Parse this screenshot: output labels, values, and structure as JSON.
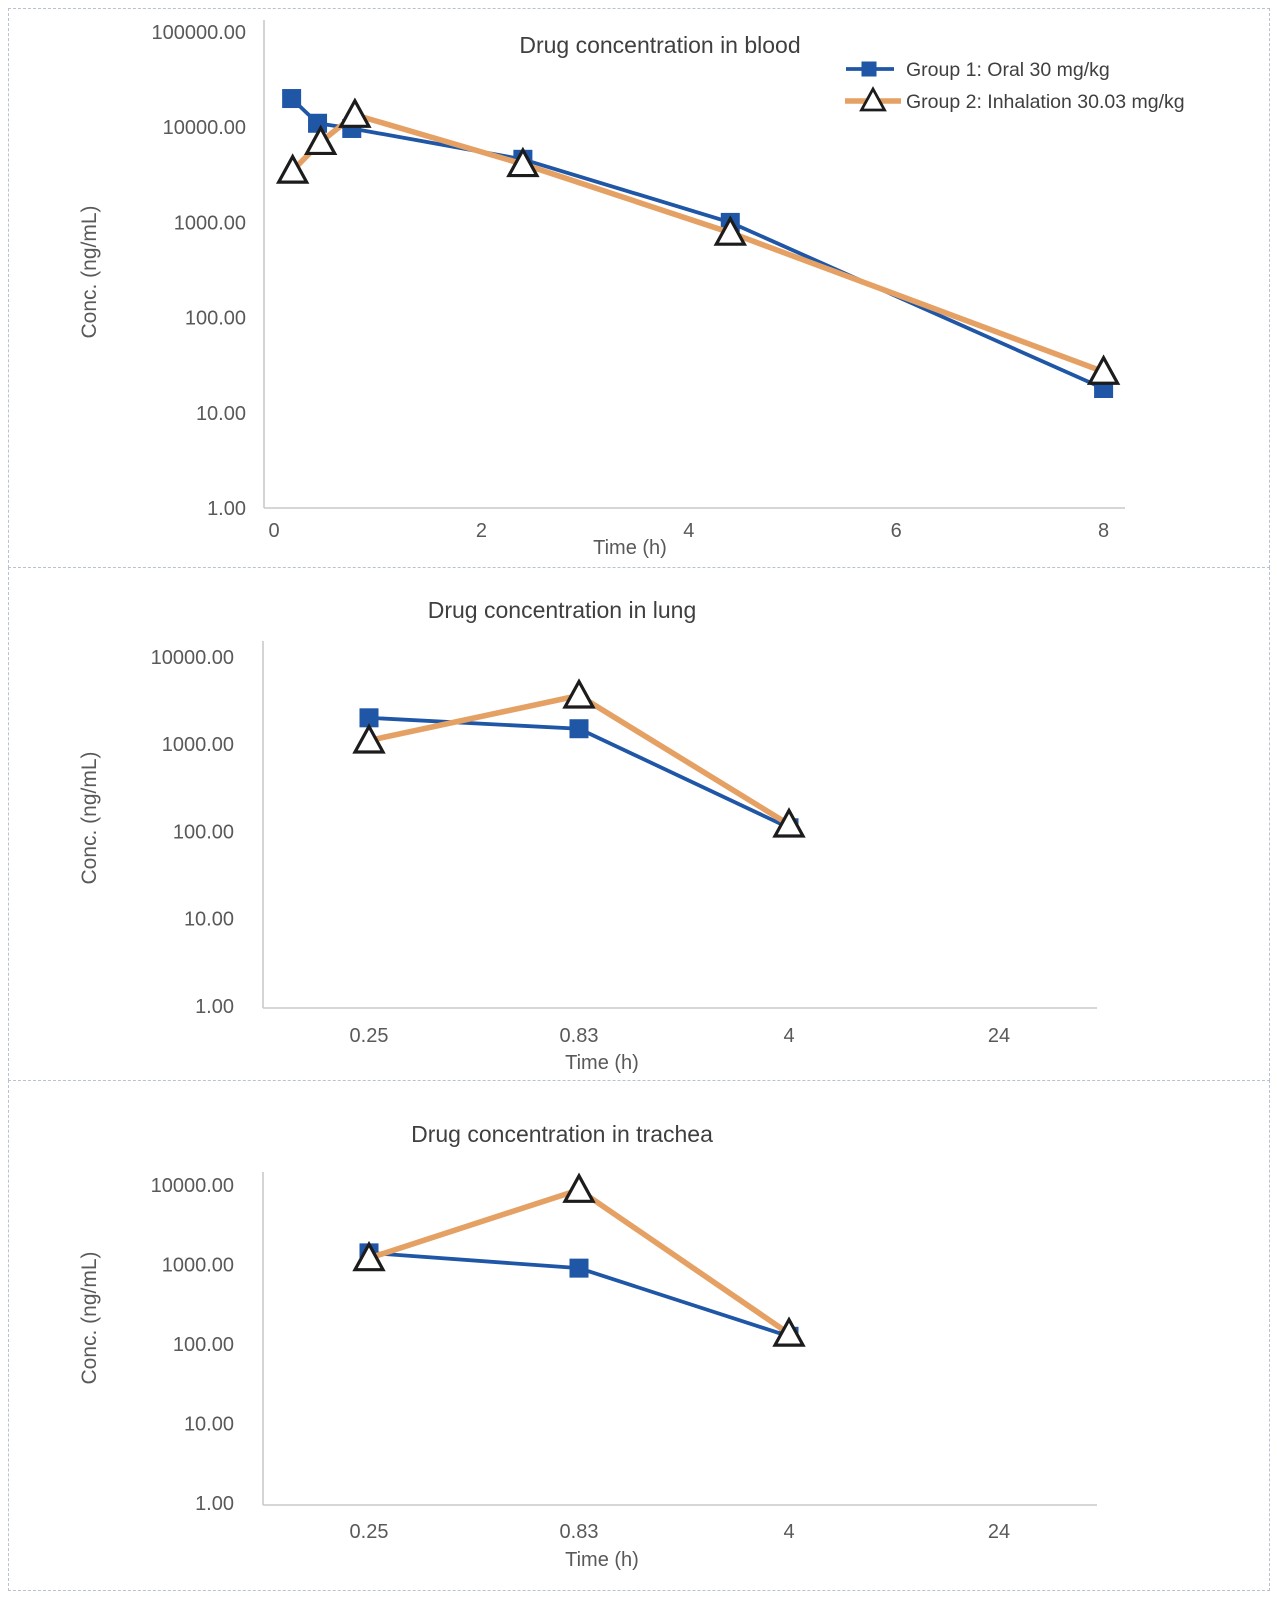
{
  "colors": {
    "group1_blue": "#1f56a6",
    "group2_orange": "#e5a164",
    "triangle_stroke": "#1c1c1c",
    "triangle_fill": "#ffffff",
    "axis_line": "#c9c9c9",
    "tick_text": "#595959",
    "title_text": "#3f3f3f",
    "panel_border": "#b9c2d3"
  },
  "legend": {
    "position": "top-right",
    "items": [
      {
        "id": "group1",
        "label": "Group 1: Oral 30 mg/kg"
      },
      {
        "id": "group2",
        "label": "Group 2: Inhalation 30.03 mg/kg"
      }
    ]
  },
  "chart_data": [
    {
      "type": "line",
      "title": "Drug concentration in blood",
      "xlabel": "Time (h)",
      "ylabel": "Conc. (ng/mL)",
      "grid": false,
      "legend_position": "top-right",
      "x_axis": {
        "type": "linear",
        "tick_labels": [
          "0",
          "2",
          "4",
          "6",
          "8"
        ],
        "tick_values": [
          0,
          2,
          4,
          6,
          8
        ],
        "range": [
          0,
          8.3
        ]
      },
      "y_axis": {
        "type": "log",
        "tick_labels": [
          "1.00",
          "10.00",
          "100.00",
          "1000.00",
          "10000.00",
          "100000.00"
        ],
        "tick_values": [
          1,
          10,
          100,
          1000,
          10000,
          100000
        ],
        "range": [
          1,
          100000
        ]
      },
      "series": [
        {
          "name": "Group 1: Oral 30 mg/kg",
          "marker": "square",
          "x": [
            0.17,
            0.42,
            0.75,
            2.4,
            4.4,
            8.0
          ],
          "y": [
            20000,
            11000,
            9700,
            4600,
            1000,
            18
          ]
        },
        {
          "name": "Group 2: Inhalation 30.03 mg/kg",
          "marker": "triangle",
          "x": [
            0.18,
            0.45,
            0.78,
            2.4,
            4.4,
            8.0
          ],
          "y": [
            3500,
            7000,
            13500,
            4100,
            780,
            27
          ]
        }
      ]
    },
    {
      "type": "line",
      "title": "Drug concentration in lung",
      "xlabel": "Time (h)",
      "ylabel": "Conc. (ng/mL)",
      "grid": false,
      "legend_position": "none",
      "x_axis": {
        "type": "category",
        "categories": [
          "0.25",
          "0.83",
          "4",
          "24"
        ]
      },
      "y_axis": {
        "type": "log",
        "tick_labels": [
          "1.00",
          "10.00",
          "100.00",
          "1000.00",
          "10000.00"
        ],
        "tick_values": [
          1,
          10,
          100,
          1000,
          10000
        ],
        "range": [
          1,
          10000
        ]
      },
      "series": [
        {
          "name": "Group 1: Oral 30 mg/kg",
          "marker": "square",
          "values": [
            2000,
            1500,
            110,
            null
          ]
        },
        {
          "name": "Group 2: Inhalation 30.03 mg/kg",
          "marker": "triangle",
          "values": [
            1100,
            3600,
            120,
            null
          ]
        }
      ]
    },
    {
      "type": "line",
      "title": "Drug concentration in trachea",
      "xlabel": "Time (h)",
      "ylabel": "Conc. (ng/mL)",
      "grid": false,
      "legend_position": "none",
      "x_axis": {
        "type": "category",
        "categories": [
          "0.25",
          "0.83",
          "4",
          "24"
        ]
      },
      "y_axis": {
        "type": "log",
        "tick_labels": [
          "1.00",
          "10.00",
          "100.00",
          "1000.00",
          "10000.00"
        ],
        "tick_values": [
          1,
          10,
          100,
          1000,
          10000
        ],
        "range": [
          1,
          10000
        ]
      },
      "series": [
        {
          "name": "Group 1: Oral 30 mg/kg",
          "marker": "square",
          "values": [
            1400,
            900,
            125,
            null
          ]
        },
        {
          "name": "Group 2: Inhalation 30.03 mg/kg",
          "marker": "triangle",
          "values": [
            1200,
            8700,
            135,
            null
          ]
        }
      ]
    }
  ]
}
